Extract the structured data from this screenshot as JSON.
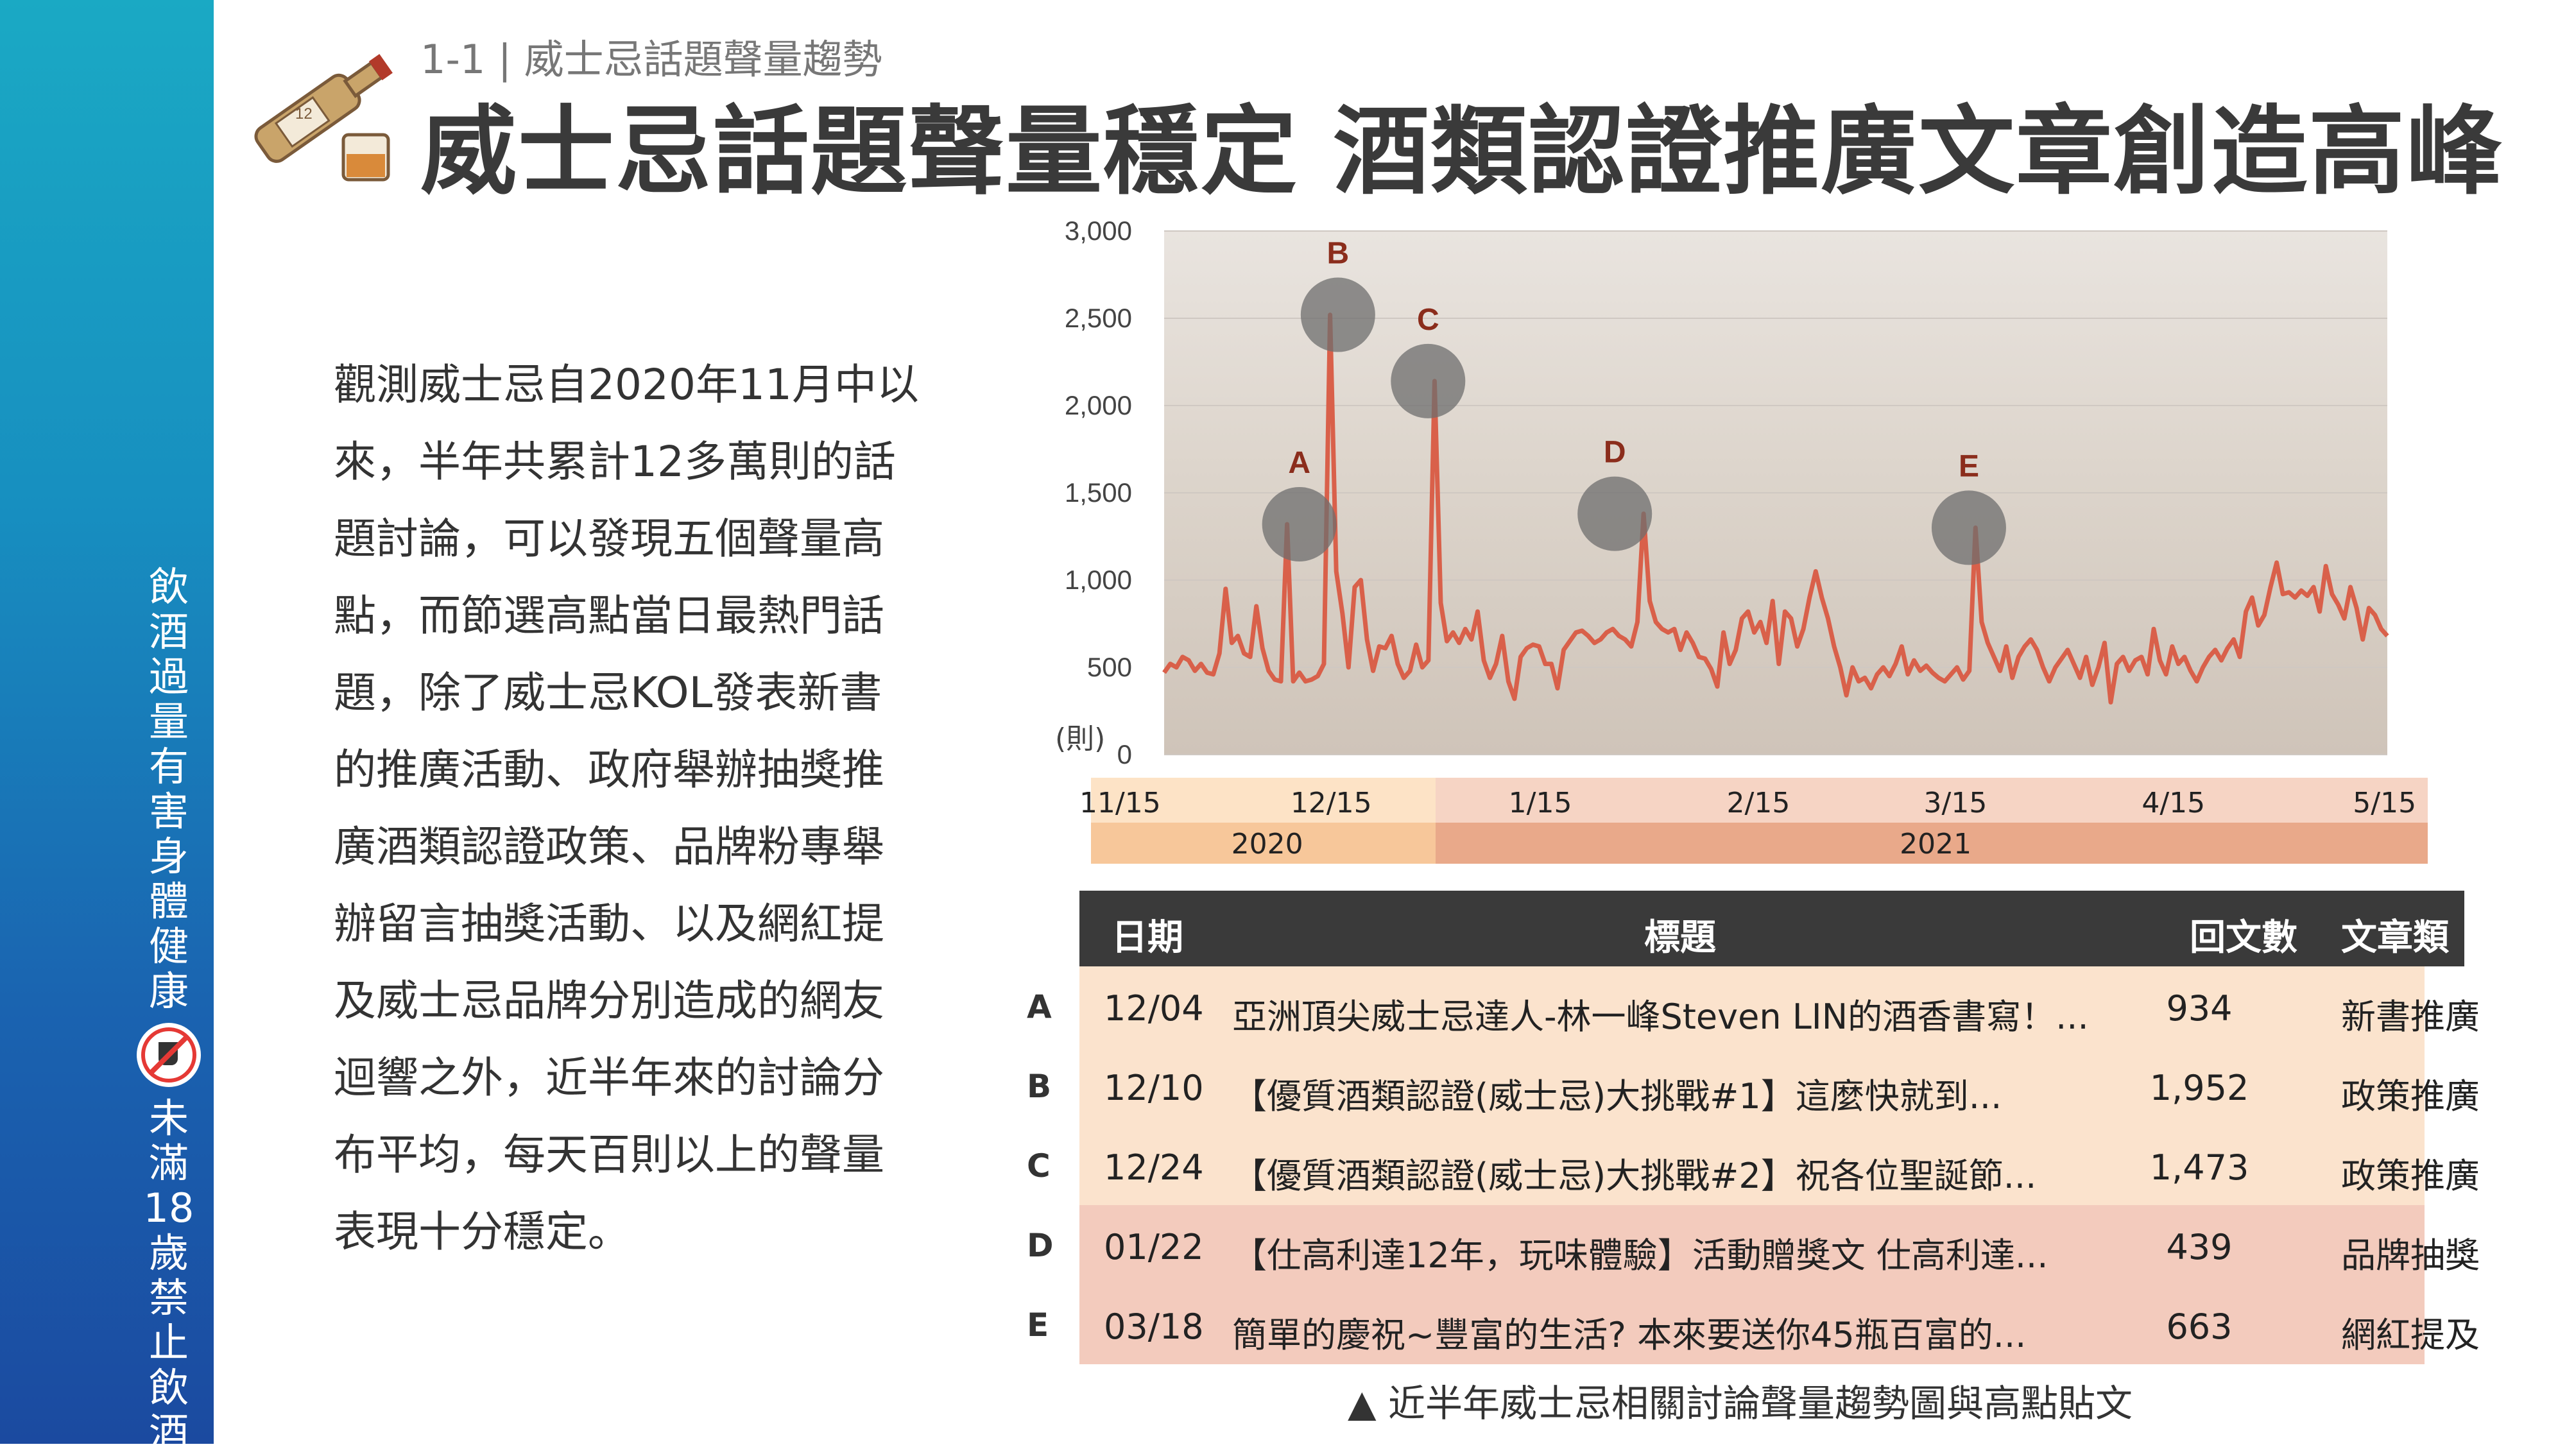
{
  "sidebar": {
    "text_top": [
      "飲",
      "酒",
      "過",
      "量",
      "有",
      "害",
      "身",
      "體",
      "健",
      "康"
    ],
    "text_bottom": [
      "未",
      "滿",
      "18",
      "歲",
      "禁",
      "止",
      "飲",
      "酒"
    ],
    "icon": "no-alcohol-icon"
  },
  "header": {
    "subtitle": "1-1 | 威士忌話題聲量趨勢",
    "title": "威士忌話題聲量穩定  酒類認證推廣文章創造高峰",
    "logo_icon": "whisky-bottle-icon",
    "bottle_label": "12"
  },
  "paragraph": [
    "觀測威士忌自2020年11月中以",
    "來，半年共累計12多萬則的話",
    "題討論，可以發現五個聲量高",
    "點，而節選高點當日最熱門話",
    "題，除了威士忌KOL發表新書",
    "的推廣活動、政府舉辦抽獎推",
    "廣酒類認證政策、品牌粉專舉",
    "辦留言抽獎活動、以及網紅提",
    "及威士忌品牌分別造成的網友",
    "迴響之外，近半年來的討論分",
    "布平均，每天百則以上的聲量",
    "表現十分穩定。"
  ],
  "colors": {
    "line": "#d9604a",
    "marker": "#6e6e6e",
    "peak_label": "#8b2d1c",
    "year2020": "#f7c79a",
    "year2021": "#e9a98a",
    "row_light": "#fbe3cd",
    "row_dark": "#f3cbbd"
  },
  "chart_data": {
    "type": "line",
    "y_unit_label": "(則)",
    "ylim": [
      0,
      3000
    ],
    "y_ticks": [
      "0",
      "500",
      "1,000",
      "1,500",
      "2,000",
      "2,500",
      "3,000"
    ],
    "grid": true,
    "x_start": "2020-11-13",
    "x_end": "2021-05-22",
    "x_tick_labels": [
      {
        "label": "11/15",
        "date": "2020-11-15"
      },
      {
        "label": "12/15",
        "date": "2020-12-15"
      },
      {
        "label": "1/15",
        "date": "2021-01-15"
      },
      {
        "label": "2/15",
        "date": "2021-02-15"
      },
      {
        "label": "3/15",
        "date": "2021-03-15"
      },
      {
        "label": "4/15",
        "date": "2021-04-15"
      },
      {
        "label": "5/15",
        "date": "2021-05-15"
      }
    ],
    "year_bands": [
      {
        "label": "2020",
        "from": "2020-11-13",
        "to": "2020-12-31"
      },
      {
        "label": "2021",
        "from": "2021-01-01",
        "to": "2021-05-22"
      }
    ],
    "peaks": [
      {
        "label": "A",
        "date": "2020-12-04",
        "value": 1320
      },
      {
        "label": "B",
        "date": "2020-12-10",
        "value": 2520
      },
      {
        "label": "C",
        "date": "2020-12-24",
        "value": 2140
      },
      {
        "label": "D",
        "date": "2021-01-22",
        "value": 1380
      },
      {
        "label": "E",
        "date": "2021-03-18",
        "value": 1300
      }
    ],
    "series": [
      {
        "values": [
          470,
          520,
          500,
          560,
          540,
          480,
          520,
          470,
          460,
          580,
          950,
          640,
          680,
          580,
          560,
          850,
          610,
          480,
          430,
          420,
          1320,
          420,
          470,
          420,
          430,
          450,
          520,
          2520,
          1050,
          810,
          500,
          960,
          1000,
          660,
          480,
          620,
          610,
          680,
          520,
          440,
          480,
          630,
          500,
          540,
          2140,
          870,
          650,
          700,
          640,
          720,
          660,
          820,
          540,
          440,
          520,
          680,
          420,
          320,
          560,
          610,
          630,
          620,
          520,
          520,
          380,
          600,
          650,
          700,
          710,
          680,
          640,
          660,
          700,
          720,
          680,
          660,
          620,
          760,
          1380,
          880,
          760,
          720,
          700,
          720,
          600,
          700,
          640,
          560,
          550,
          490,
          390,
          700,
          520,
          600,
          780,
          820,
          700,
          760,
          640,
          880,
          520,
          820,
          780,
          620,
          720,
          900,
          1050,
          900,
          780,
          620,
          500,
          340,
          500,
          420,
          440,
          380,
          460,
          500,
          450,
          520,
          620,
          460,
          540,
          480,
          510,
          470,
          440,
          420,
          460,
          500,
          430,
          480,
          1300,
          760,
          640,
          560,
          480,
          620,
          440,
          560,
          620,
          660,
          600,
          500,
          420,
          500,
          550,
          600,
          520,
          440,
          560,
          400,
          500,
          640,
          300,
          520,
          560,
          480,
          540,
          560,
          460,
          720,
          540,
          460,
          620,
          520,
          560,
          480,
          420,
          500,
          560,
          600,
          540,
          610,
          660,
          560,
          820,
          900,
          740,
          800,
          960,
          1100,
          920,
          930,
          900,
          940,
          910,
          960,
          820,
          1080,
          920,
          860,
          780,
          960,
          840,
          660,
          840,
          800,
          720,
          680
        ]
      }
    ]
  },
  "table": {
    "headers": [
      "日期",
      "標題",
      "回文數",
      "文章類型"
    ],
    "rows": [
      {
        "key": "A",
        "date": "12/04",
        "title": "亞洲頂尖威士忌達人-林一峰Steven LIN的酒香書寫！...",
        "replies": "934",
        "type": "新書推廣"
      },
      {
        "key": "B",
        "date": "12/10",
        "title": "【優質酒類認證(威士忌)大挑戰#1】這麼快就到...",
        "replies": "1,952",
        "type": "政策推廣"
      },
      {
        "key": "C",
        "date": "12/24",
        "title": "【優質酒類認證(威士忌)大挑戰#2】祝各位聖誕節...",
        "replies": "1,473",
        "type": "政策推廣"
      },
      {
        "key": "D",
        "date": "01/22",
        "title": "【仕高利達12年，玩味體驗】活動贈獎文 仕高利達...",
        "replies": "439",
        "type": "品牌抽獎"
      },
      {
        "key": "E",
        "date": "03/18",
        "title": "簡單的慶祝~豐富的生活? 本來要送你45瓶百富的...",
        "replies": "663",
        "type": "網紅提及"
      }
    ]
  },
  "caption": "▲ 近半年威士忌相關討論聲量趨勢圖與高點貼文"
}
